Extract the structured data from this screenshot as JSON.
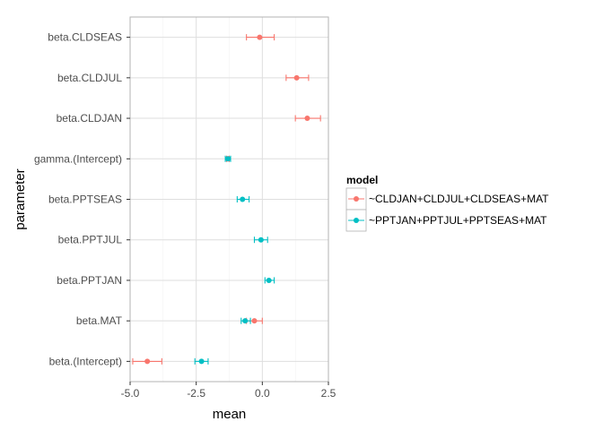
{
  "chart_data": {
    "type": "scatter",
    "subtype": "point-range (errorbar)",
    "title": "",
    "xlabel": "mean",
    "ylabel": "parameter",
    "xlim": [
      -5.0,
      2.5
    ],
    "x_ticks": [
      -5.0,
      -2.5,
      0.0,
      2.5
    ],
    "x_tick_labels": [
      "-5.0",
      "-2.5",
      "0.0",
      "2.5"
    ],
    "categories": [
      "beta.(Intercept)",
      "beta.MAT",
      "beta.PPTJAN",
      "beta.PPTJUL",
      "beta.PPTSEAS",
      "gamma.(Intercept)",
      "beta.CLDJAN",
      "beta.CLDJUL",
      "beta.CLDSEAS"
    ],
    "grid": true,
    "legend": {
      "title": "model",
      "position": "right"
    },
    "series": [
      {
        "name": "~CLDJAN+CLDJUL+CLDSEAS+MAT",
        "color": "#F8766D",
        "points": [
          {
            "parameter": "beta.(Intercept)",
            "mean": -4.35,
            "lower": -4.9,
            "upper": -3.8
          },
          {
            "parameter": "beta.MAT",
            "mean": -0.3,
            "lower": -0.6,
            "upper": 0.0
          },
          {
            "parameter": "gamma.(Intercept)",
            "mean": -1.3,
            "lower": -1.35,
            "upper": -1.25
          },
          {
            "parameter": "beta.CLDJAN",
            "mean": 1.7,
            "lower": 1.25,
            "upper": 2.2
          },
          {
            "parameter": "beta.CLDJUL",
            "mean": 1.3,
            "lower": 0.9,
            "upper": 1.75
          },
          {
            "parameter": "beta.CLDSEAS",
            "mean": -0.1,
            "lower": -0.6,
            "upper": 0.45
          }
        ]
      },
      {
        "name": "~PPTJAN+PPTJUL+PPTSEAS+MAT",
        "color": "#00BFC4",
        "points": [
          {
            "parameter": "beta.(Intercept)",
            "mean": -2.3,
            "lower": -2.55,
            "upper": -2.05
          },
          {
            "parameter": "beta.MAT",
            "mean": -0.65,
            "lower": -0.8,
            "upper": -0.45
          },
          {
            "parameter": "beta.PPTJAN",
            "mean": 0.25,
            "lower": 0.1,
            "upper": 0.45
          },
          {
            "parameter": "beta.PPTJUL",
            "mean": -0.05,
            "lower": -0.3,
            "upper": 0.2
          },
          {
            "parameter": "beta.PPTSEAS",
            "mean": -0.75,
            "lower": -0.95,
            "upper": -0.5
          },
          {
            "parameter": "gamma.(Intercept)",
            "mean": -1.3,
            "lower": -1.4,
            "upper": -1.2
          }
        ]
      }
    ]
  }
}
